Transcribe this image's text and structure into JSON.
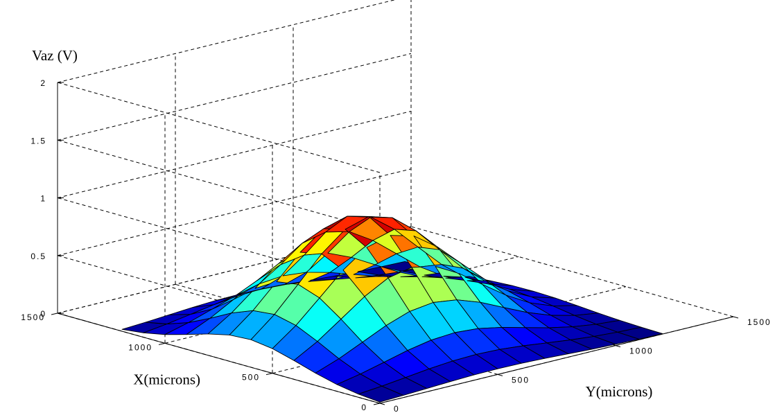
{
  "chart_data": {
    "type": "surface",
    "title": "",
    "xlabel": "X(microns)",
    "ylabel": "Y(microns)",
    "zlabel": "Vaz (V)",
    "xlim": [
      0,
      1500
    ],
    "ylim": [
      0,
      1500
    ],
    "zlim": [
      0,
      2
    ],
    "xticks": [
      0,
      500,
      1000,
      1500
    ],
    "xtick_labels": [
      "0",
      "500",
      "1000",
      "1500"
    ],
    "yticks": [
      0,
      500,
      1000,
      1500
    ],
    "ytick_labels": [
      "0",
      "500",
      "1000",
      "1500"
    ],
    "zticks": [
      0,
      0.5,
      1,
      1.5,
      2
    ],
    "ztick_labels": [
      "0",
      "0.5",
      "1",
      "1.5",
      "2"
    ],
    "grid": true,
    "colormap": "jet",
    "x": [
      0,
      100,
      200,
      300,
      400,
      500,
      600,
      700,
      800,
      900,
      1000,
      1100,
      1200
    ],
    "y": [
      0,
      100,
      200,
      300,
      400,
      500,
      600,
      700,
      800,
      900,
      1000,
      1100,
      1200
    ],
    "z_grid": "approximately Vaz = 1.06 * exp(-((x-620)^2/(2*250^2) + (y-500)^2/(2*290^2))) sampled on x,y",
    "peak": {
      "x": 620,
      "y": 500,
      "z": 1.06
    }
  },
  "colors": {
    "background": "#ffffff",
    "axes": "#000000",
    "mesh_edges": "#000000"
  }
}
